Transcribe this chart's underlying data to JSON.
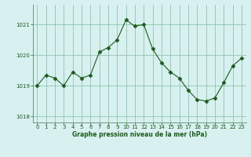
{
  "x": [
    0,
    1,
    2,
    3,
    4,
    5,
    6,
    7,
    8,
    9,
    10,
    11,
    12,
    13,
    14,
    15,
    16,
    17,
    18,
    19,
    20,
    21,
    22,
    23
  ],
  "y": [
    1019.0,
    1019.35,
    1019.25,
    1019.0,
    1019.45,
    1019.25,
    1019.35,
    1020.1,
    1020.25,
    1020.5,
    1021.15,
    1020.95,
    1021.0,
    1020.2,
    1019.75,
    1019.45,
    1019.25,
    1018.85,
    1018.55,
    1018.5,
    1018.6,
    1019.1,
    1019.65,
    1019.9
  ],
  "line_color": "#1a5c1a",
  "marker": "D",
  "marker_size": 2.5,
  "bg_color": "#d8f0f0",
  "grid_color": "#7fbf9f",
  "xlabel": "Graphe pression niveau de la mer (hPa)",
  "xlabel_color": "#1a5c1a",
  "tick_color": "#1a5c1a",
  "ylim": [
    1017.8,
    1021.65
  ],
  "yticks": [
    1018,
    1019,
    1020,
    1021
  ],
  "xlim": [
    -0.5,
    23.5
  ],
  "xticks": [
    0,
    1,
    2,
    3,
    4,
    5,
    6,
    7,
    8,
    9,
    10,
    11,
    12,
    13,
    14,
    15,
    16,
    17,
    18,
    19,
    20,
    21,
    22,
    23
  ],
  "tick_labelsize": 5,
  "xlabel_fontsize": 5.5,
  "linewidth": 0.8
}
